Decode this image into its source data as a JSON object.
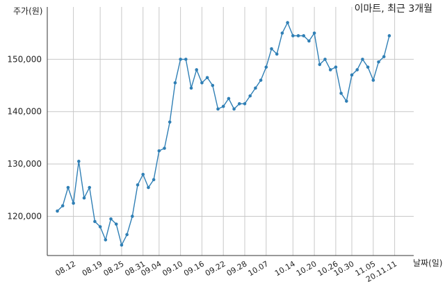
{
  "chart_data": {
    "type": "line",
    "title": "이마트, 최근 3개월",
    "ylabel": "주가(원)",
    "xlabel": "날짜(일)",
    "ylim": [
      112500,
      160000
    ],
    "yticks": [
      120000,
      130000,
      140000,
      150000
    ],
    "ytick_labels": [
      "120,000",
      "130,000",
      "140,000",
      "150,000"
    ],
    "grid": true,
    "colors": {
      "line": "#2f7fb5",
      "marker": "#2f7fb5"
    },
    "xtick_labels": [
      "08.12",
      "08.19",
      "08.25",
      "08.31",
      "09.04",
      "09.10",
      "09.16",
      "09.22",
      "09.28",
      "10.07",
      "10.14",
      "10.20",
      "10.26",
      "10.30",
      "11.05",
      "20.11.11"
    ],
    "xtick_index": [
      3,
      8,
      12,
      16,
      19,
      23,
      27,
      31,
      35,
      39,
      44,
      48,
      52,
      55,
      59,
      63
    ],
    "values": [
      121000,
      122000,
      125500,
      122500,
      130500,
      123500,
      125500,
      119000,
      118000,
      115500,
      119500,
      118500,
      114500,
      116500,
      120000,
      126000,
      128000,
      125500,
      127000,
      132500,
      133000,
      138000,
      145500,
      150000,
      150000,
      144500,
      148000,
      145500,
      146500,
      145000,
      140500,
      141000,
      142500,
      140500,
      141500,
      141500,
      143000,
      144500,
      146000,
      148500,
      152000,
      151000,
      155000,
      157000,
      154500,
      154500,
      154500,
      153500,
      155000,
      149000,
      150000,
      148000,
      148500,
      143500,
      142000,
      147000,
      148000,
      150000,
      148500,
      146000,
      149500,
      150500,
      154500
    ]
  }
}
